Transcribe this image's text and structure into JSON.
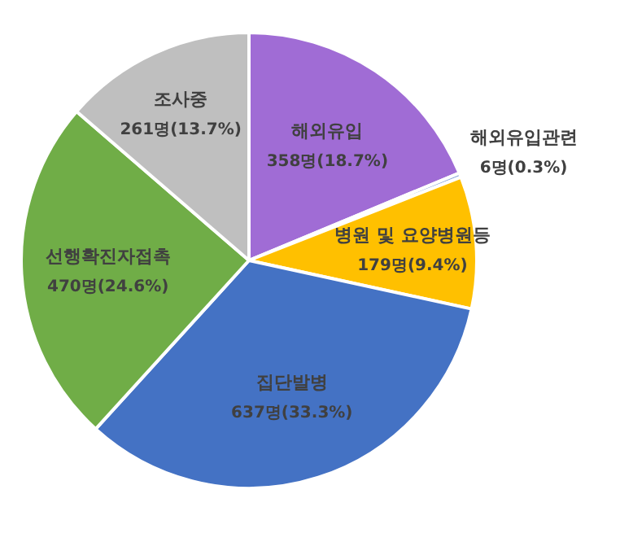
{
  "chart_data": {
    "type": "pie",
    "categories": [
      "해외유입",
      "해외유입관련",
      "병원 및 요양병원등",
      "집단발병",
      "선행확진자접촉",
      "조사중"
    ],
    "values": [
      358,
      6,
      179,
      637,
      470,
      261
    ],
    "value_labels": [
      "358명(18.7%)",
      "6명(0.3%)",
      "179명(9.4%)",
      "637명(33.3%)",
      "470명(24.6%)",
      "261명(13.7%)"
    ],
    "colors": [
      "#a06cd5",
      "#8faadc",
      "#ffc000",
      "#4472c4",
      "#70ad47",
      "#bfbfbf"
    ],
    "legend": false
  }
}
